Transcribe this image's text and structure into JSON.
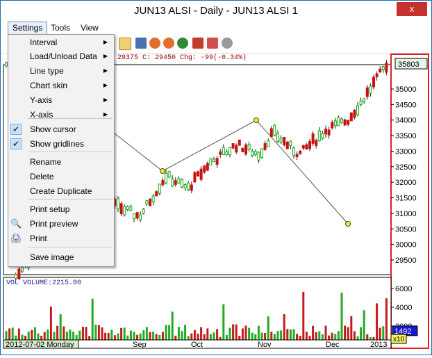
{
  "window": {
    "title": "JUN13 ALSI - Daily - JUN13 ALSI 1",
    "close_glyph": "x"
  },
  "menubar": {
    "items": [
      "Settings",
      "Tools",
      "View"
    ],
    "active": "Settings"
  },
  "infobar": {
    "text": "29375  C: 29450  Chg: -99(-0.34%)"
  },
  "price_axis": {
    "ticks": [
      "35000",
      "34500",
      "34000",
      "33500",
      "33000",
      "32500",
      "32000",
      "31500",
      "31000",
      "30500",
      "30000",
      "29500"
    ],
    "last_price": "35803",
    "highlight_color": "#e02020"
  },
  "volume_panel": {
    "label": "VOL  VOLUME:2215.80",
    "ticks": [
      "6000",
      "4000",
      "2000"
    ],
    "last_value": "1492"
  },
  "x_axis": {
    "start_label": "2012-07-02 Monday",
    "months": [
      "Sep",
      "Oct",
      "Nov",
      "Dec"
    ],
    "end_label": "2013",
    "zoom_label": "x10"
  },
  "settings_menu": {
    "items": [
      {
        "label": "Interval",
        "submenu": true,
        "icon": ""
      },
      {
        "label": "Load/Unload Data",
        "submenu": true,
        "icon": ""
      },
      {
        "label": "Line type",
        "submenu": true,
        "icon": ""
      },
      {
        "label": "Chart skin",
        "submenu": true,
        "icon": ""
      },
      {
        "label": "Y-axis",
        "submenu": true,
        "icon": ""
      },
      {
        "label": "X-axis",
        "submenu": true,
        "icon": ""
      },
      {
        "label": "Show cursor",
        "submenu": false,
        "icon": "check-icon",
        "checked": true
      },
      {
        "label": "Show gridlines",
        "submenu": false,
        "icon": "check-icon",
        "checked": true
      },
      {
        "label": "Rename",
        "submenu": false,
        "icon": ""
      },
      {
        "label": "Delete",
        "submenu": false,
        "icon": ""
      },
      {
        "label": "Create Duplicate",
        "submenu": false,
        "icon": ""
      },
      {
        "label": "Print setup",
        "submenu": false,
        "icon": ""
      },
      {
        "label": "Print preview",
        "submenu": false,
        "icon": "print-preview-icon"
      },
      {
        "label": "Print",
        "submenu": false,
        "icon": "printer-icon"
      },
      {
        "label": "Save image",
        "submenu": false,
        "icon": ""
      }
    ],
    "check_glyph": "✔",
    "arrow_glyph": "▶",
    "preview_glyph": "🔍",
    "printer_glyph": "🖨"
  },
  "colors": {
    "up": "#11aa11",
    "down": "#cc1111",
    "volume": "#c41b1b",
    "volume_up": "#22aa22",
    "trendline": "#555555",
    "handle": "#ffee00"
  }
}
